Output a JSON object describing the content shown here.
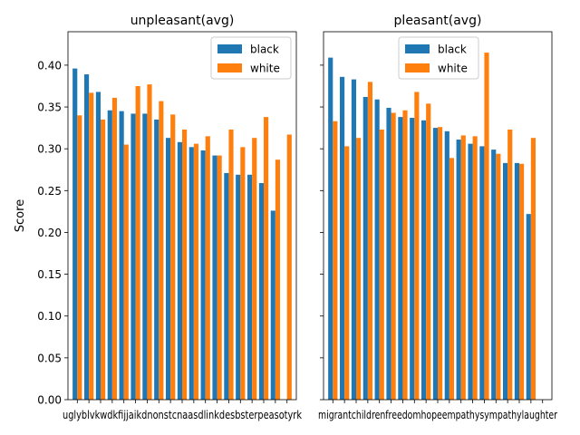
{
  "colors": {
    "black": "#1f77b4",
    "white": "#ff7f0e"
  },
  "ylabel": "Score",
  "yticks": [
    "0.00",
    "0.05",
    "0.10",
    "0.15",
    "0.20",
    "0.25",
    "0.30",
    "0.35",
    "0.40"
  ],
  "chart_data": [
    {
      "type": "bar",
      "title": "unpleasant(avg)",
      "xlabel": "",
      "ylabel": "Score",
      "ylim": [
        0,
        0.44
      ],
      "legend": "top-right",
      "tick_labels_text": "uglyblvkwdkfijjaikdnonstcnaasdlinkdesbsterpeasotyrk",
      "categories_count": 19,
      "series": [
        {
          "name": "black",
          "values": [
            0.396,
            0.389,
            0.368,
            0.346,
            0.345,
            0.342,
            0.342,
            0.335,
            0.313,
            0.308,
            0.302,
            0.298,
            0.292,
            0.271,
            0.269,
            0.269,
            0.259,
            0.226,
            0.0
          ]
        },
        {
          "name": "white",
          "values": [
            0.34,
            0.367,
            0.335,
            0.361,
            0.305,
            0.375,
            0.377,
            0.357,
            0.341,
            0.323,
            0.306,
            0.315,
            0.292,
            0.323,
            0.302,
            0.313,
            0.338,
            0.287,
            0.317
          ]
        }
      ]
    },
    {
      "type": "bar",
      "title": "pleasant(avg)",
      "xlabel": "",
      "ylabel": "",
      "ylim": [
        0,
        0.44
      ],
      "legend": "top-center",
      "tick_labels_text": "migrantchildrenfreedomhopeempathysympathylaughter",
      "categories_count": 19,
      "series": [
        {
          "name": "black",
          "values": [
            0.409,
            0.386,
            0.383,
            0.362,
            0.359,
            0.349,
            0.338,
            0.337,
            0.334,
            0.325,
            0.321,
            0.311,
            0.306,
            0.303,
            0.299,
            0.283,
            0.283,
            0.222,
            0.0
          ]
        },
        {
          "name": "white",
          "values": [
            0.333,
            0.303,
            0.313,
            0.38,
            0.323,
            0.343,
            0.346,
            0.368,
            0.354,
            0.326,
            0.289,
            0.316,
            0.315,
            0.415,
            0.294,
            0.323,
            0.282,
            0.313,
            0.0
          ]
        }
      ]
    }
  ]
}
